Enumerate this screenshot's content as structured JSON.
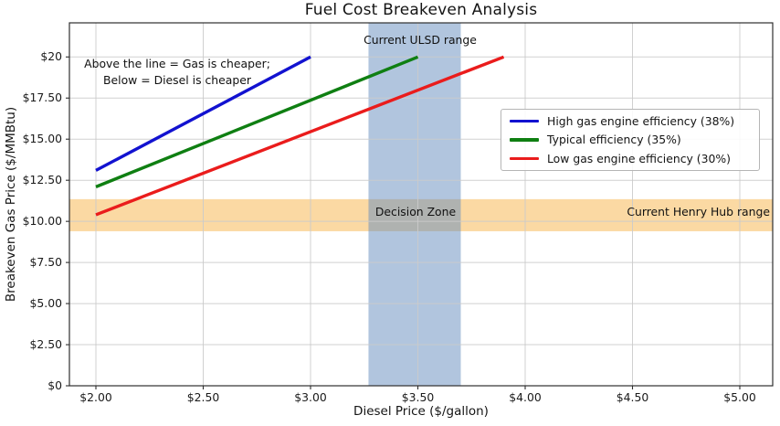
{
  "title": "Fuel Cost Breakeven Analysis",
  "axes": {
    "xlabel": "Diesel Price ($/gallon)",
    "ylabel": "Breakeven Gas Price ($/MMBtu)"
  },
  "annotation": {
    "line1": "Above the line = Gas is cheaper;",
    "line2": "Below = Diesel is cheaper"
  },
  "labels": {
    "ulsd_band": "Current ULSD range",
    "decision_zone": "Decision Zone",
    "henry_hub_band": "Current Henry Hub range"
  },
  "colors": {
    "high_efficiency_line": "#1212d0",
    "typical_efficiency_line": "#0f7f12",
    "low_efficiency_line": "#ea1c1c",
    "ulsd_band": "rgba(100,140,190,0.5)",
    "henry_hub_band": "#fbd9a3",
    "gridline": "#cbcbcb",
    "spine": "#2e2e2e"
  },
  "chart_data": {
    "type": "line",
    "title": "Fuel Cost Breakeven Analysis",
    "xlabel": "Diesel Price ($/gallon)",
    "ylabel": "Breakeven Gas Price ($/MMBtu)",
    "xlim": [
      1.87,
      5.16
    ],
    "ylim": [
      0,
      22.1
    ],
    "grid": true,
    "legend_position": "center-right",
    "xticks": {
      "values": [
        2.0,
        2.5,
        3.0,
        3.5,
        4.0,
        4.5,
        5.0
      ],
      "labels": [
        "$2.00",
        "$2.50",
        "$3.00",
        "$3.50",
        "$4.00",
        "$4.50",
        "$5.00"
      ]
    },
    "yticks": {
      "values": [
        0,
        2.5,
        5,
        7.5,
        10,
        12.5,
        15,
        17.5,
        20
      ],
      "labels": [
        "$0",
        "$2.50",
        "$5.00",
        "$7.50",
        "$10.00",
        "$12.50",
        "$15.00",
        "$17.50",
        "$20"
      ]
    },
    "series": [
      {
        "name": "High gas engine efficiency (38%)",
        "color": "#1212d0",
        "points": [
          [
            2.0,
            13.1
          ],
          [
            3.0,
            20.0
          ]
        ]
      },
      {
        "name": "Typical efficiency (35%)",
        "color": "#0f7f12",
        "points": [
          [
            2.0,
            12.1
          ],
          [
            3.5,
            20.0
          ]
        ]
      },
      {
        "name": "Low gas engine efficiency (30%)",
        "color": "#ea1c1c",
        "points": [
          [
            2.0,
            10.4
          ],
          [
            3.9,
            20.0
          ]
        ]
      }
    ],
    "vspan": {
      "label": "Current ULSD range",
      "range": [
        3.27,
        3.7
      ],
      "color": "rgba(100,140,190,0.5)"
    },
    "hspan": {
      "label": "Current Henry Hub range",
      "inner_label": "Decision Zone",
      "range": [
        9.4,
        11.35
      ],
      "color": "#fbd9a3"
    }
  }
}
